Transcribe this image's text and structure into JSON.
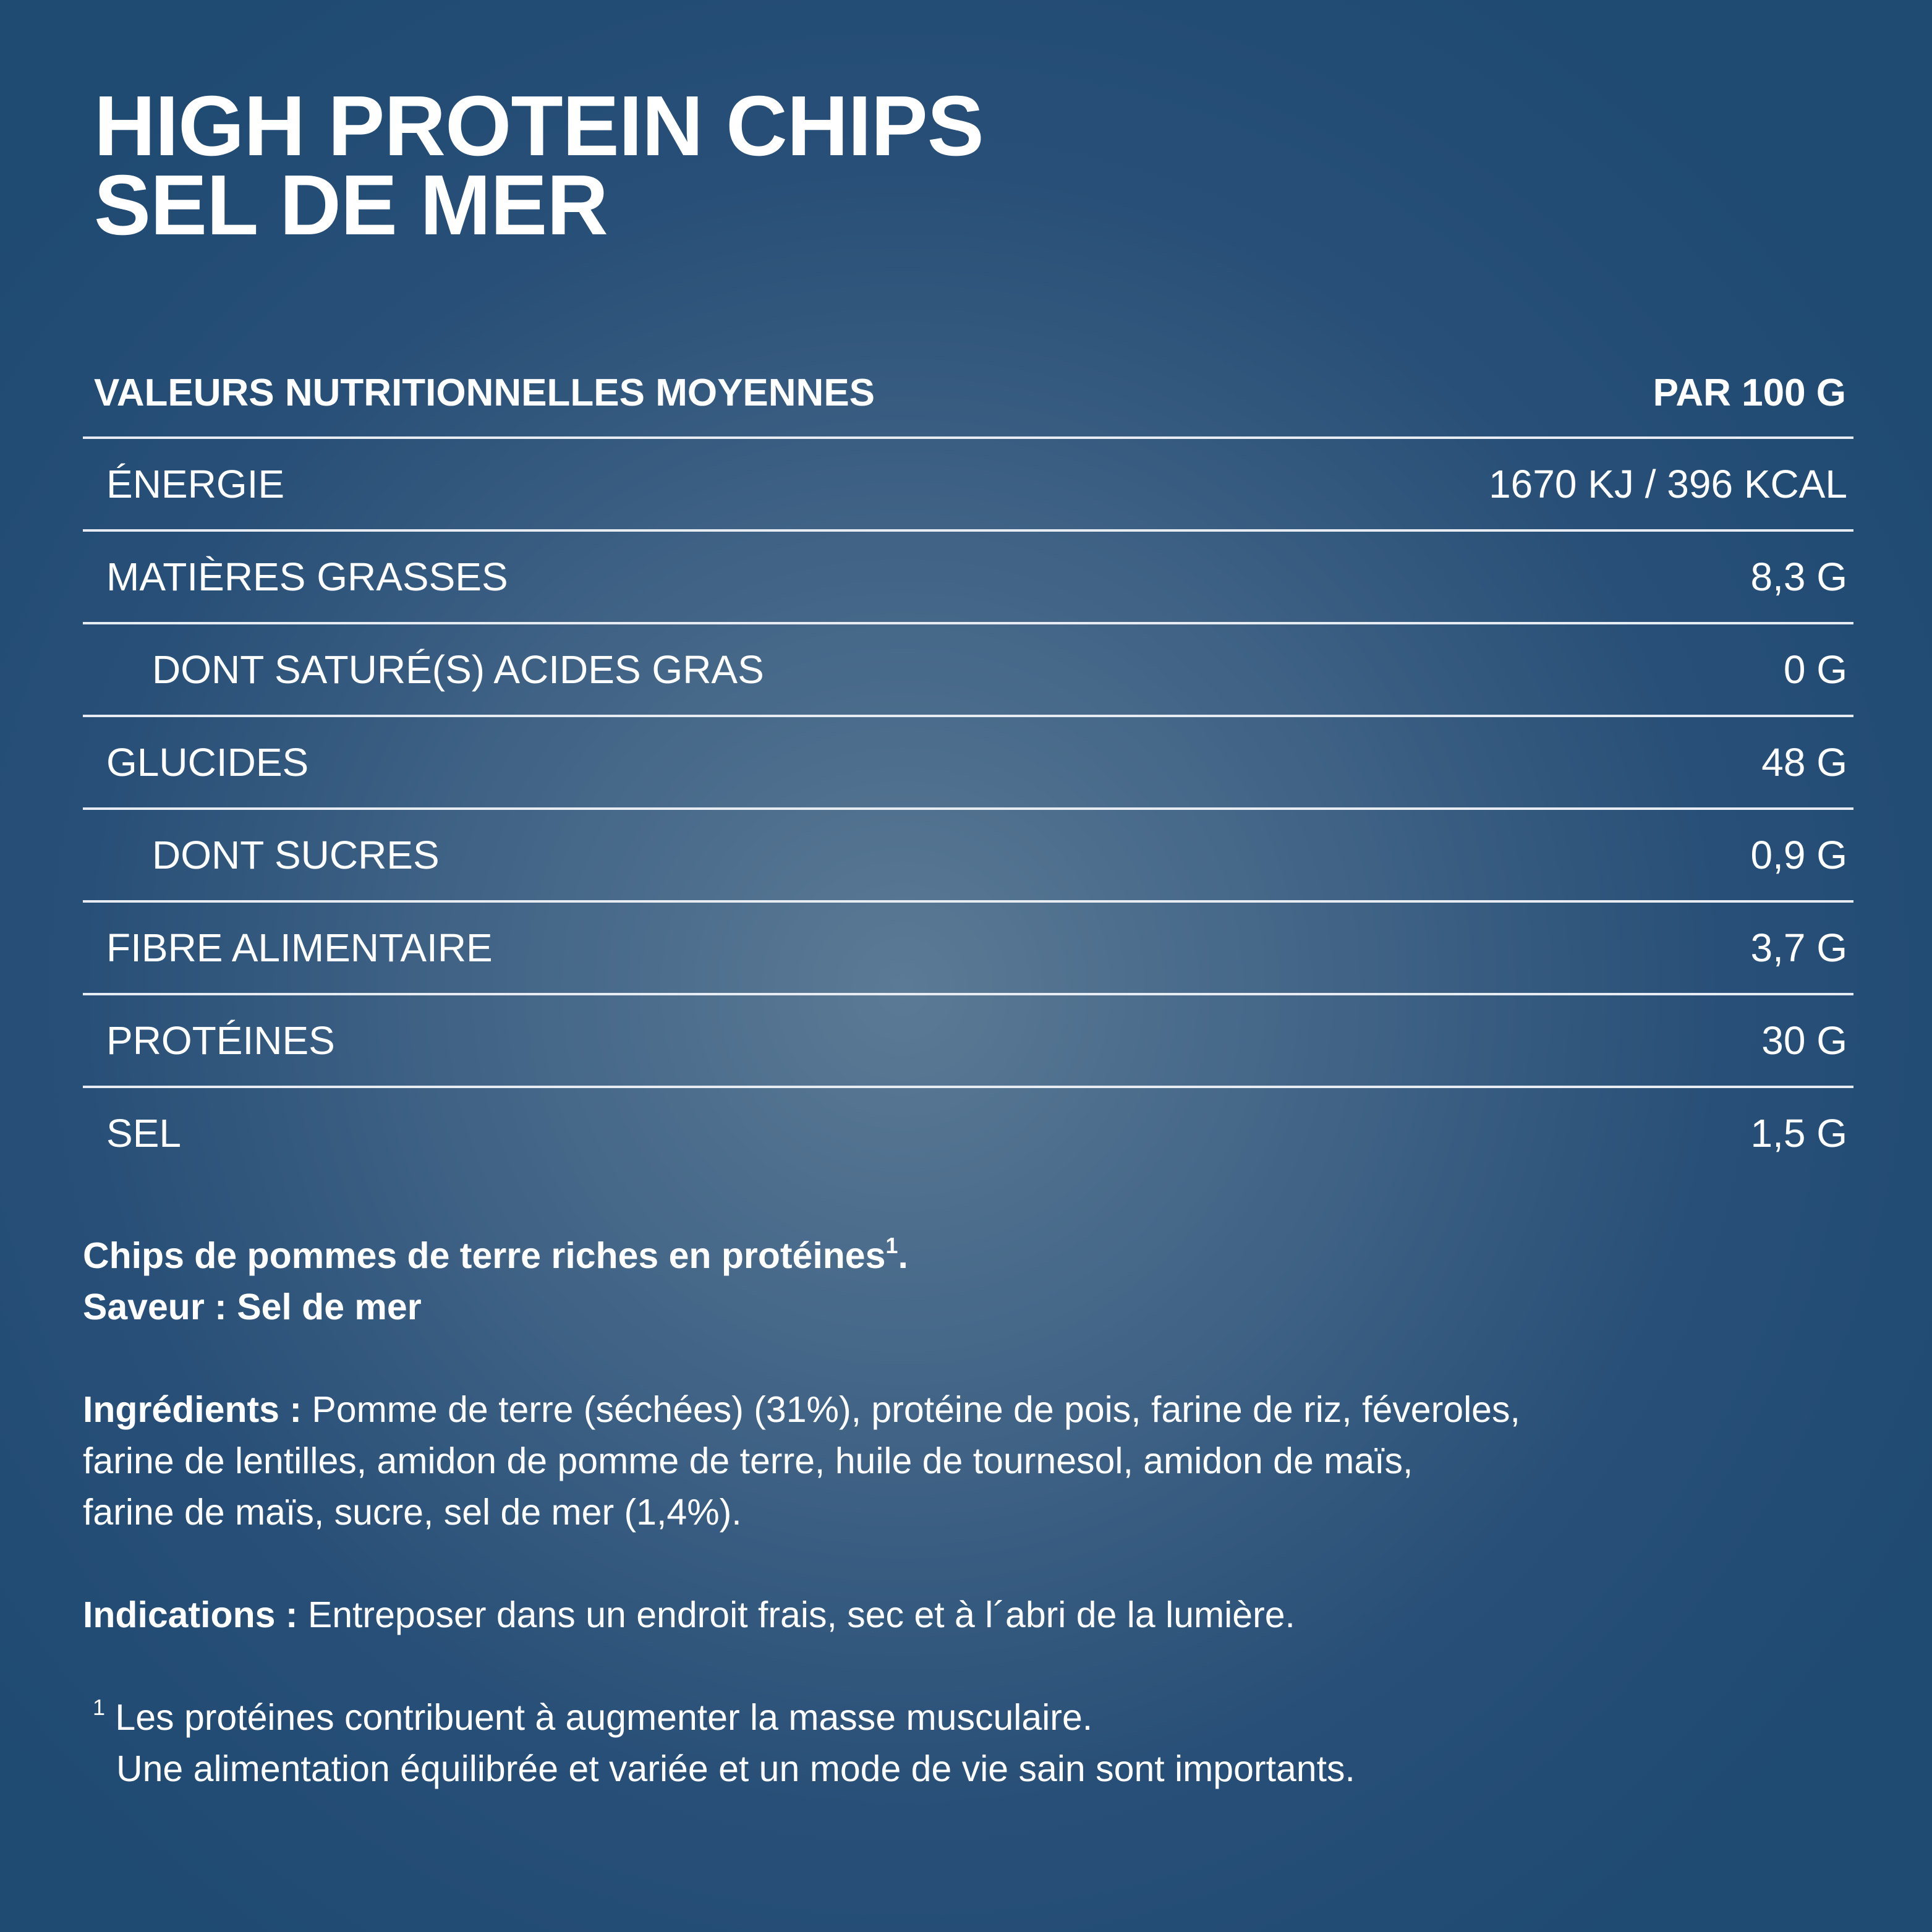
{
  "title": {
    "line1": "HIGH PROTEIN CHIPS",
    "line2": "SEL DE MER"
  },
  "table": {
    "header_label": "VALEURS NUTRITIONNELLES MOYENNES",
    "header_unit": "PAR 100 G",
    "rows": [
      {
        "label": "ÉNERGIE",
        "value": "1670 KJ / 396 KCAL"
      },
      {
        "label": "MATIÈRES GRASSES",
        "value": "8,3 G"
      },
      {
        "label": "DONT SATURÉ(S) ACIDES GRAS",
        "value": "0 G"
      },
      {
        "label": "GLUCIDES",
        "value": "48 G"
      },
      {
        "label": "DONT SUCRES",
        "value": "0,9 G"
      },
      {
        "label": "FIBRE ALIMENTAIRE",
        "value": "3,7 G"
      },
      {
        "label": "PROTÉINES",
        "value": "30 G"
      },
      {
        "label": "SEL",
        "value": "1,5 G"
      }
    ]
  },
  "description": {
    "line1": "Chips de pommes de terre riches en protéines",
    "line1_sup": "1",
    "line1_end": ".",
    "flavour_label": "Saveur : Sel de mer"
  },
  "ingredients": {
    "label": "Ingrédients :",
    "line1": " Pomme de terre (séchées) (31%), protéine de pois, farine de riz, féveroles,",
    "line2": "farine de lentilles, amidon de pomme de terre, huile de tournesol, amidon de maïs,",
    "line3": "farine de maïs, sucre, sel de mer (1,4%)."
  },
  "indications": {
    "label": "Indications :",
    "text": " Entreposer dans un endroit frais, sec et à l´abri de la lumière."
  },
  "footnote": {
    "marker": "1",
    "line1": " Les protéines contribuent à augmenter la masse musculaire.",
    "line2": "Une alimentation équilibrée et variée et un mode de vie sain sont importants."
  }
}
